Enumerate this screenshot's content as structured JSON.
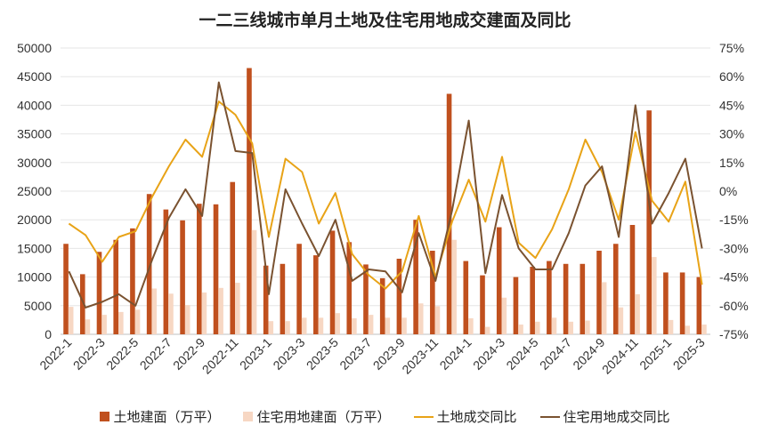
{
  "chart_data": {
    "type": "bar",
    "title": "一二三线城市单月土地及住宅用地成交建面及同比",
    "categories": [
      "2022-1",
      "2022-2",
      "2022-3",
      "2022-4",
      "2022-5",
      "2022-6",
      "2022-7",
      "2022-8",
      "2022-9",
      "2022-10",
      "2022-11",
      "2022-12",
      "2023-1",
      "2023-2",
      "2023-3",
      "2023-4",
      "2023-5",
      "2023-6",
      "2023-7",
      "2023-8",
      "2023-9",
      "2023-10",
      "2023-11",
      "2023-12",
      "2024-1",
      "2024-2",
      "2024-3",
      "2024-4",
      "2024-5",
      "2024-6",
      "2024-7",
      "2024-8",
      "2024-9",
      "2024-10",
      "2024-11",
      "2024-12",
      "2025-1",
      "2025-2",
      "2025-3"
    ],
    "x_tick_labels": [
      "2022-1",
      "2022-3",
      "2022-5",
      "2022-7",
      "2022-9",
      "2022-11",
      "2023-1",
      "2023-3",
      "2023-5",
      "2023-7",
      "2023-9",
      "2023-11",
      "2024-1",
      "2024-3",
      "2024-5",
      "2024-7",
      "2024-9",
      "2024-11",
      "2025-1",
      "2025-3"
    ],
    "y_left": {
      "min": 0,
      "max": 50000,
      "ticks": [
        "0",
        "5000",
        "10000",
        "15000",
        "20000",
        "25000",
        "30000",
        "35000",
        "40000",
        "45000",
        "50000"
      ]
    },
    "y_right": {
      "min": -75,
      "max": 75,
      "ticks": [
        "-75%",
        "-60%",
        "-45%",
        "-30%",
        "-15%",
        "0%",
        "15%",
        "30%",
        "45%",
        "60%",
        "75%"
      ]
    },
    "series": [
      {
        "name": "土地建面（万平）",
        "kind": "bar",
        "axis": "left",
        "color": "#c0501e",
        "values": [
          15800,
          10500,
          14400,
          16500,
          18500,
          24500,
          21800,
          19900,
          22800,
          22700,
          26600,
          46500,
          12000,
          12300,
          15800,
          13800,
          18100,
          16100,
          12200,
          9800,
          13200,
          20000,
          14600,
          42000,
          12800,
          10300,
          18700,
          10000,
          11800,
          12800,
          12300,
          12300,
          14600,
          15800,
          19100,
          39100,
          10800,
          10800,
          10000
        ]
      },
      {
        "name": "住宅用地建面（万平）",
        "kind": "bar",
        "axis": "left",
        "color": "#f7d7c3",
        "values": [
          4800,
          2600,
          3400,
          3900,
          4300,
          8000,
          7100,
          5100,
          7300,
          8100,
          9000,
          18200,
          2300,
          2300,
          2900,
          2900,
          3700,
          2800,
          3400,
          2900,
          2900,
          5400,
          4900,
          16500,
          2800,
          1300,
          6400,
          1700,
          2200,
          2900,
          2200,
          2400,
          9100,
          4700,
          7000,
          13500,
          2500,
          1500,
          1700
        ]
      },
      {
        "name": "土地成交同比",
        "kind": "line",
        "axis": "right",
        "color": "#e8a317",
        "values": [
          -17,
          -23,
          -37,
          -24,
          -21,
          -3,
          13,
          27,
          18,
          47,
          40,
          25,
          -24,
          17,
          10,
          -17,
          -1,
          -33,
          -44,
          -51,
          -42,
          -13,
          -45,
          -16,
          6,
          -16,
          18,
          -27,
          -35,
          -20,
          1,
          27,
          10,
          -15,
          31,
          -5,
          -16,
          5,
          -49
        ]
      },
      {
        "name": "住宅用地成交同比",
        "kind": "line",
        "axis": "right",
        "color": "#7a5230",
        "values": [
          -42,
          -61,
          -58,
          -54,
          -60,
          -36,
          -14,
          1,
          -13,
          57,
          21,
          20,
          -54,
          1,
          -17,
          -34,
          -15,
          -47,
          -41,
          -42,
          -53,
          -22,
          -47,
          -10,
          37,
          -43,
          -2,
          -30,
          -41,
          -41,
          -22,
          3,
          13,
          -24,
          45,
          -17,
          -1,
          17,
          -30
        ]
      }
    ],
    "legend_position": "bottom",
    "grid": true
  }
}
